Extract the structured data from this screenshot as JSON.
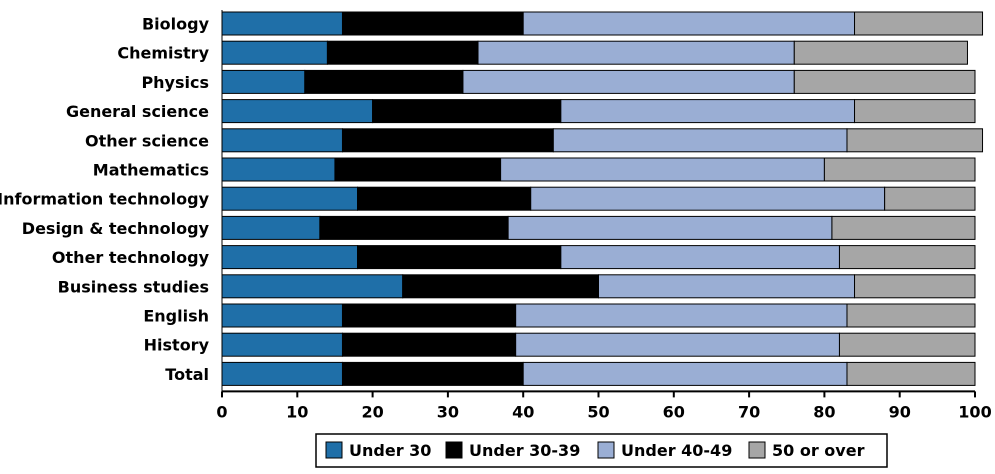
{
  "chart_data": {
    "type": "bar",
    "orientation": "horizontal",
    "stacked": true,
    "categories": [
      "Biology",
      "Chemistry",
      "Physics",
      "General science",
      "Other science",
      "Mathematics",
      "Information technology",
      "Design & technology",
      "Other technology",
      "Business studies",
      "English",
      "History",
      "Total"
    ],
    "series": [
      {
        "name": "Under 30",
        "color": "#1f6fa8",
        "values": [
          16,
          14,
          11,
          20,
          16,
          15,
          18,
          13,
          18,
          24,
          16,
          16,
          16
        ]
      },
      {
        "name": "Under 30-39",
        "color": "#000000",
        "values": [
          24,
          20,
          21,
          25,
          28,
          22,
          23,
          25,
          27,
          26,
          23,
          23,
          24
        ]
      },
      {
        "name": "Under 40-49",
        "color": "#9aaed4",
        "values": [
          44,
          42,
          44,
          39,
          39,
          43,
          47,
          43,
          37,
          34,
          44,
          43,
          43
        ]
      },
      {
        "name": "50 or over",
        "color": "#a6a6a6",
        "values": [
          17,
          23,
          24,
          16,
          18,
          20,
          12,
          19,
          18,
          16,
          17,
          18,
          17
        ]
      }
    ],
    "xlim": [
      0,
      100
    ],
    "xticks": [
      "0",
      "10",
      "20",
      "30",
      "40",
      "50",
      "60",
      "70",
      "80",
      "90",
      "100"
    ],
    "title": "",
    "xlabel": "",
    "ylabel": "",
    "grid": false,
    "legend_position": "bottom"
  }
}
